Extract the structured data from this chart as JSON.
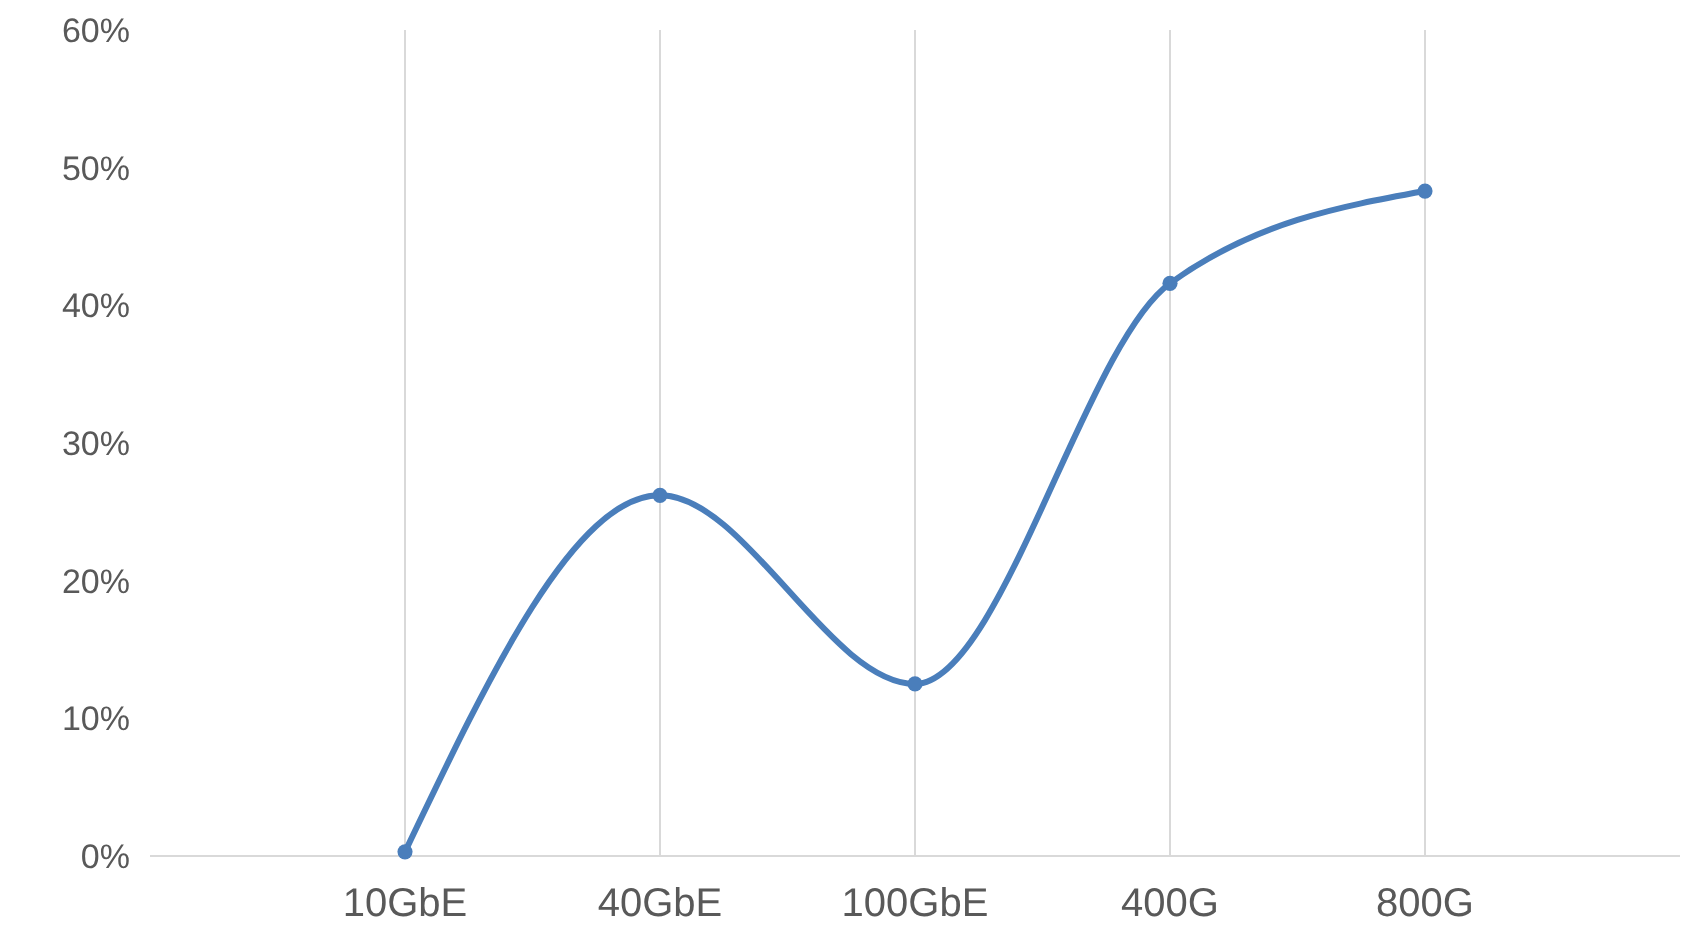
{
  "chart_data": {
    "type": "line",
    "categories": [
      null,
      "10GbE",
      "40GbE",
      "100GbE",
      "400G",
      "800G",
      null
    ],
    "series": [
      {
        "color": "#4a7ebb",
        "values": [
          null,
          0.3,
          26.2,
          12.5,
          41.6,
          48.3,
          null
        ]
      }
    ],
    "ylim": [
      0,
      60
    ],
    "yticks": [
      {
        "value": 0,
        "label": "0%"
      },
      {
        "value": 10,
        "label": "10%"
      },
      {
        "value": 20,
        "label": "20%"
      },
      {
        "value": 30,
        "label": "30%"
      },
      {
        "value": 40,
        "label": "40%"
      },
      {
        "value": 50,
        "label": "50%"
      },
      {
        "value": 60,
        "label": "60%"
      }
    ],
    "grid": "x",
    "marker": "circle",
    "line_style": "solid"
  }
}
